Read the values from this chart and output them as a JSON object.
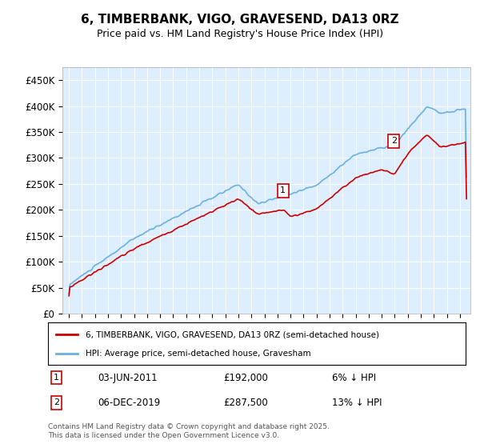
{
  "title": "6, TIMBERBANK, VIGO, GRAVESEND, DA13 0RZ",
  "subtitle": "Price paid vs. HM Land Registry's House Price Index (HPI)",
  "ylim": [
    0,
    475000
  ],
  "yticks": [
    0,
    50000,
    100000,
    150000,
    200000,
    250000,
    300000,
    350000,
    400000,
    450000
  ],
  "ytick_labels": [
    "£0",
    "£50K",
    "£100K",
    "£150K",
    "£200K",
    "£250K",
    "£300K",
    "£350K",
    "£400K",
    "£450K"
  ],
  "hpi_color": "#6ab0e0",
  "price_color": "#cc0000",
  "plot_bg_color": "#ddeeff",
  "legend_label_price": "6, TIMBERBANK, VIGO, GRAVESEND, DA13 0RZ (semi-detached house)",
  "legend_label_hpi": "HPI: Average price, semi-detached house, Gravesham",
  "annotation1_date": "03-JUN-2011",
  "annotation1_price": "£192,000",
  "annotation1_pct": "6% ↓ HPI",
  "annotation2_date": "06-DEC-2019",
  "annotation2_price": "£287,500",
  "annotation2_pct": "13% ↓ HPI",
  "footer": "Contains HM Land Registry data © Crown copyright and database right 2025.\nThis data is licensed under the Open Government Licence v3.0."
}
